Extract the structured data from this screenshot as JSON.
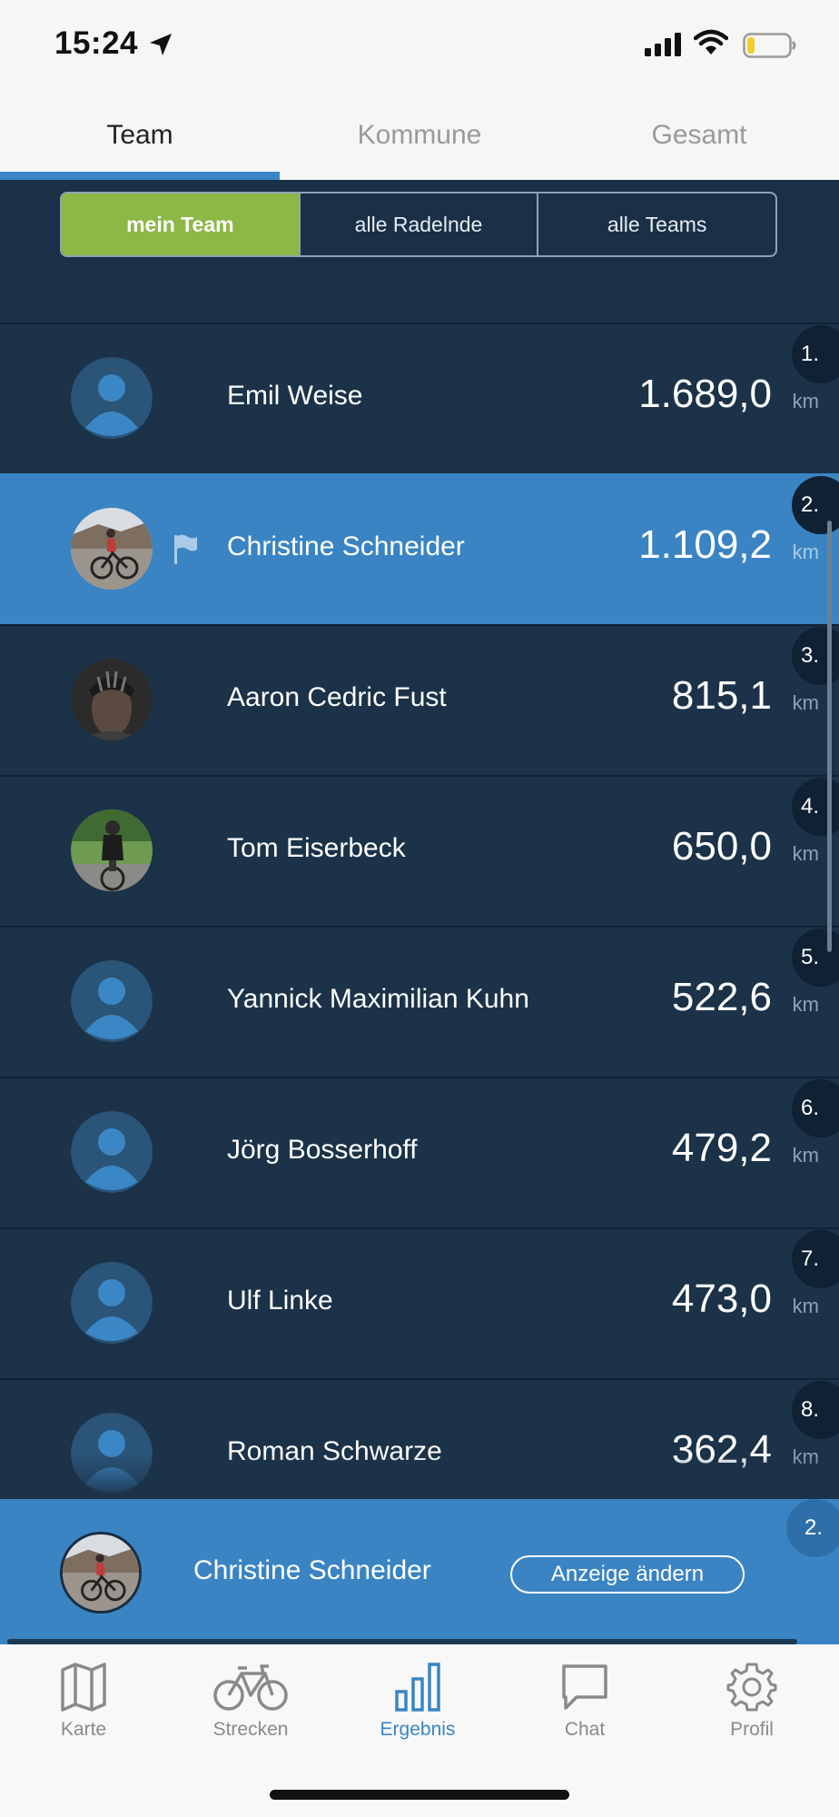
{
  "status_bar": {
    "time": "15:24"
  },
  "top_tabs": [
    {
      "label": "Team",
      "active": true
    },
    {
      "label": "Kommune",
      "active": false
    },
    {
      "label": "Gesamt",
      "active": false
    }
  ],
  "filter": [
    {
      "label": "mein Team",
      "active": true
    },
    {
      "label": "alle Radelnde",
      "active": false
    },
    {
      "label": "alle Teams",
      "active": false
    }
  ],
  "colors": {
    "accent_blue": "#3a84c3",
    "accent_green": "#8db846",
    "background": "#1b3248"
  },
  "rows": [
    {
      "rank": "1.",
      "name": "Emil Weise",
      "distance": "1.689,0",
      "unit": "km",
      "avatar": "default-avatar-icon",
      "me": false
    },
    {
      "rank": "2.",
      "name": "Christine Schneider",
      "distance": "1.109,2",
      "unit": "km",
      "avatar": "cyclist-photo",
      "me": true
    },
    {
      "rank": "3.",
      "name": "Aaron Cedric Fust",
      "distance": "815,1",
      "unit": "km",
      "avatar": "helmet-photo",
      "me": false
    },
    {
      "rank": "4.",
      "name": "Tom Eiserbeck",
      "distance": "650,0",
      "unit": "km",
      "avatar": "cyclist-photo",
      "me": false
    },
    {
      "rank": "5.",
      "name": "Yannick Maximilian Kuhn",
      "distance": "522,6",
      "unit": "km",
      "avatar": "default-avatar-icon",
      "me": false
    },
    {
      "rank": "6.",
      "name": "Jörg Bosserhoff",
      "distance": "479,2",
      "unit": "km",
      "avatar": "default-avatar-icon",
      "me": false
    },
    {
      "rank": "7.",
      "name": "Ulf Linke",
      "distance": "473,0",
      "unit": "km",
      "avatar": "default-avatar-icon",
      "me": false
    },
    {
      "rank": "8.",
      "name": "Roman Schwarze",
      "distance": "362,4",
      "unit": "km",
      "avatar": "default-avatar-icon",
      "me": false
    }
  ],
  "me_bar": {
    "rank": "2.",
    "name": "Christine Schneider",
    "button_label": "Anzeige ändern"
  },
  "tab_bar": [
    {
      "label": "Karte",
      "icon": "map-icon",
      "active": false
    },
    {
      "label": "Strecken",
      "icon": "bicycle-icon",
      "active": false
    },
    {
      "label": "Ergebnis",
      "icon": "bar-chart-icon",
      "active": true
    },
    {
      "label": "Chat",
      "icon": "chat-icon",
      "active": false
    },
    {
      "label": "Profil",
      "icon": "gear-icon",
      "active": false
    }
  ]
}
